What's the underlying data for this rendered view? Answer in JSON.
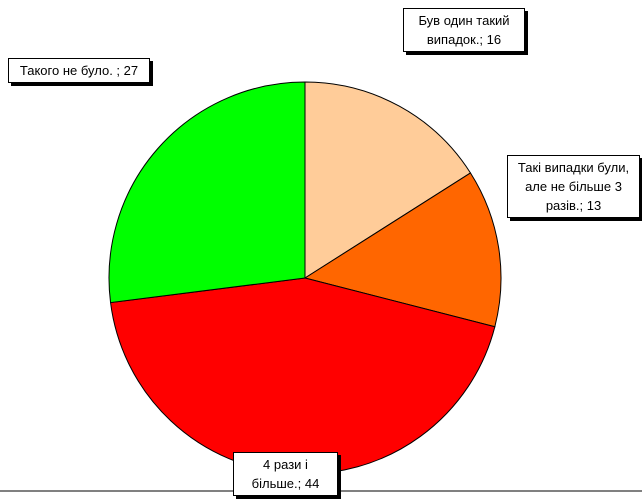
{
  "chart_data": {
    "type": "pie",
    "values": [
      16,
      13,
      44,
      27
    ],
    "value_labels": [
      "Був один такий випадок.; 16",
      "Такі випадки були, але не більше 3 разів.; 13",
      "4 рази і більше.; 44",
      "Такого не було. ; 27"
    ],
    "colors": [
      "#FFCC99",
      "#FF6600",
      "#FF0000",
      "#00FF00"
    ]
  }
}
